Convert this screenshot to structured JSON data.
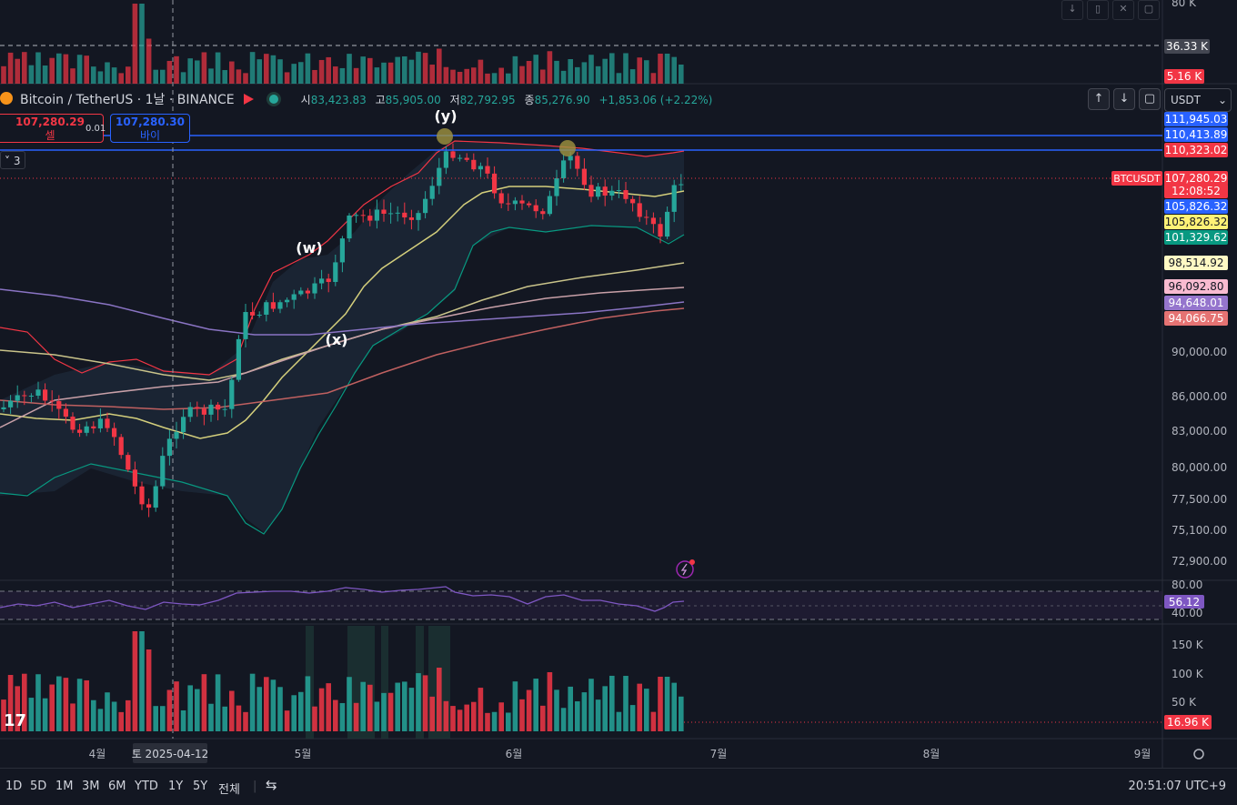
{
  "header": {
    "symbol": "Bitcoin / TetherUS · 1날 · BINANCE",
    "open_label": "시",
    "open_value": "83,423.83",
    "high_label": "고",
    "high_value": "85,905.00",
    "low_label": "저",
    "low_value": "82,792.95",
    "close_label": "종",
    "close_value": "85,276.90",
    "change": "+1,853.06 (+2.22%)"
  },
  "trade": {
    "sell_price": "107,280.29",
    "sell_label": "셀",
    "spread": "0.01",
    "buy_price": "107,280.30",
    "buy_label": "바이"
  },
  "indicators_collapse": "3",
  "currency": "USDT",
  "annotations": [
    "(y)",
    "(w)",
    "(x)"
  ],
  "price_axis": {
    "ticks": [
      "90,000.00",
      "86,000.00",
      "83,000.00",
      "80,000.00",
      "77,500.00",
      "75,100.00",
      "72,900.00"
    ],
    "tags": [
      {
        "text": "111,945.03",
        "bg": "#2962ff",
        "fg": "#ffffff"
      },
      {
        "text": "110,413.89",
        "bg": "#2962ff",
        "fg": "#ffffff"
      },
      {
        "text": "110,323.02",
        "bg": "#f23645",
        "fg": "#ffffff"
      },
      {
        "text": "107,280.29",
        "bg": "#f23645",
        "fg": "#ffffff"
      },
      {
        "text": "12:08:52",
        "bg": "#f23645",
        "fg": "#ffffff"
      },
      {
        "text": "105,826.32",
        "bg": "#2962ff",
        "fg": "#ffffff"
      },
      {
        "text": "105,826.32",
        "bg": "#fff176",
        "fg": "#131722"
      },
      {
        "text": "101,329.62",
        "bg": "#089981",
        "fg": "#ffffff"
      },
      {
        "text": "98,514.92",
        "bg": "#fff9c4",
        "fg": "#131722"
      },
      {
        "text": "96,092.80",
        "bg": "#f8bbd0",
        "fg": "#131722"
      },
      {
        "text": "94,648.01",
        "bg": "#9575cd",
        "fg": "#ffffff"
      },
      {
        "text": "94,066.75",
        "bg": "#e57373",
        "fg": "#ffffff"
      }
    ],
    "symbol_tag": "BTCUSDT"
  },
  "top_volume_axis": {
    "ticks": [
      "80 K"
    ],
    "tag1": "36.33 K",
    "tag2": "5.16 K"
  },
  "rsi": {
    "ticks": [
      "80.00",
      "40.00"
    ],
    "value": "56.12"
  },
  "volume_axis": {
    "ticks": [
      "150 K",
      "100 K",
      "50 K"
    ],
    "tag": "16.96 K"
  },
  "time_axis": {
    "labels": [
      "4월",
      "5월",
      "6월",
      "7월",
      "8월",
      "9월"
    ],
    "crosshair": "토 2025-04-12"
  },
  "ranges": [
    "1D",
    "5D",
    "1M",
    "3M",
    "6M",
    "YTD",
    "1Y",
    "5Y",
    "전체"
  ],
  "clock": "20:51:07 UTC+9",
  "logo": "17",
  "colors": {
    "up": "#26a69a",
    "down": "#f23645",
    "bg": "#131722"
  }
}
